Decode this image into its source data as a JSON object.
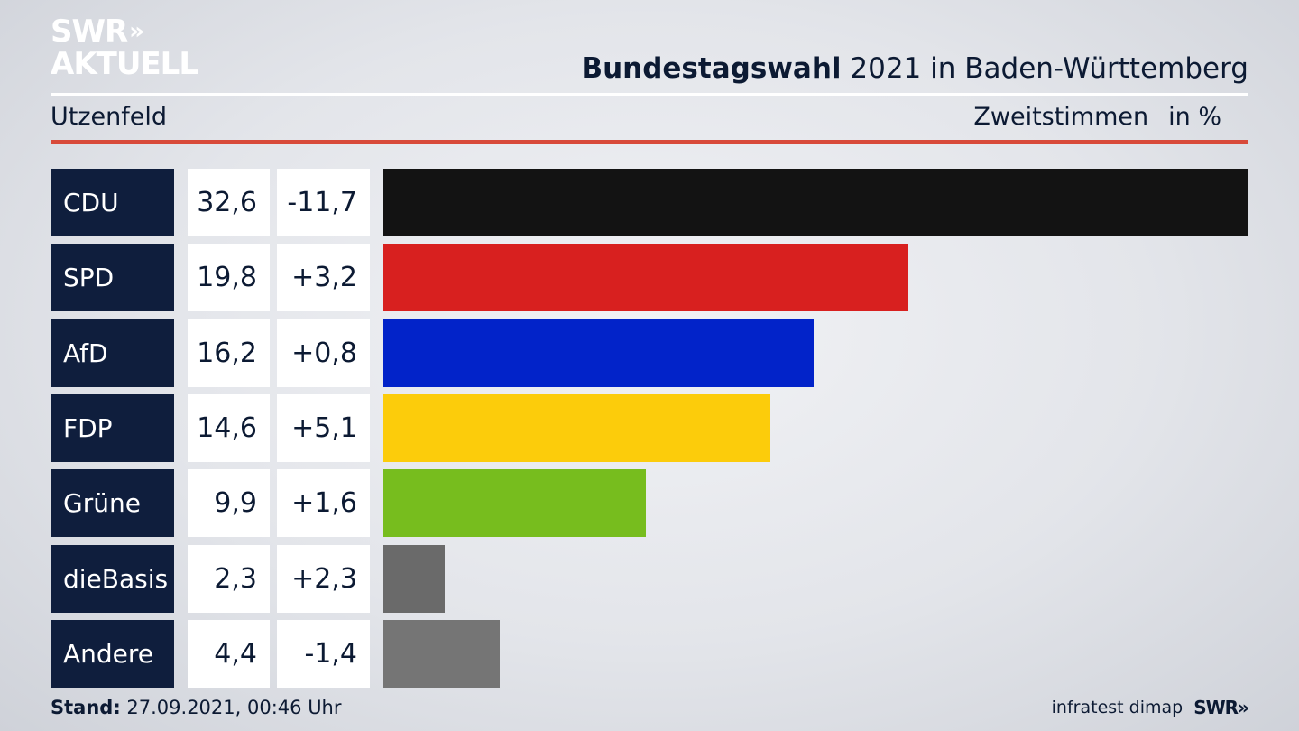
{
  "header": {
    "logo_line1": "SWR",
    "logo_arrows": "»",
    "logo_line2": "AKTUELL",
    "title_bold": "Bundestagswahl",
    "title_rest": "2021 in Baden-Württemberg",
    "region": "Utzenfeld",
    "vote_type": "Zweitstimmen",
    "unit": "in %"
  },
  "footer": {
    "stand_label": "Stand:",
    "stand_value": "27.09.2021, 00:46 Uhr",
    "source": "infratest dimap",
    "brand": "SWR»"
  },
  "chart_data": {
    "type": "bar",
    "orientation": "horizontal",
    "categories": [
      "CDU",
      "SPD",
      "AfD",
      "FDP",
      "Grüne",
      "dieBasis",
      "Andere"
    ],
    "values": [
      32.6,
      19.8,
      16.2,
      14.6,
      9.9,
      2.3,
      4.4
    ],
    "value_labels": [
      "32,6",
      "19,8",
      "16,2",
      "14,6",
      "9,9",
      "2,3",
      "4,4"
    ],
    "changes": [
      -11.7,
      3.2,
      0.8,
      5.1,
      1.6,
      2.3,
      -1.4
    ],
    "change_labels": [
      "-11,7",
      "+3,2",
      "+0,8",
      "+5,1",
      "+1,6",
      "+2,3",
      "-1,4"
    ],
    "colors": [
      "#131313",
      "#d8201f",
      "#0223c9",
      "#fccc0b",
      "#77bd1e",
      "#6a6a6a",
      "#757575"
    ],
    "title": "Bundestagswahl 2021 in Baden-Württemberg",
    "xlim": [
      0,
      32.6
    ]
  }
}
